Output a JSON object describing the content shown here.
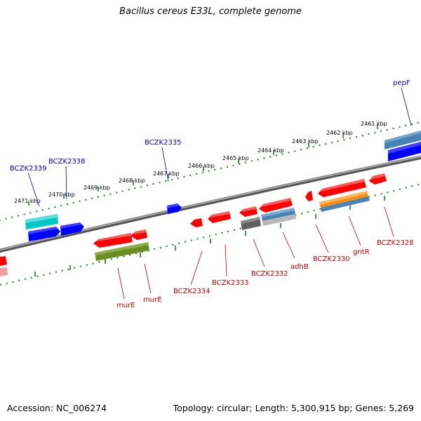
{
  "title": "Bacillus cereus E33L, complete genome",
  "accession": "Accession: NC_006274",
  "summary": "Topology: circular; Length: 5,300,915 bp; Genes: 5,269",
  "colors": {
    "backbone": "#7f7f7f",
    "tick": "#1e7d1e",
    "plus_label": "#0000c8",
    "minus_label": "#c80000",
    "cds": "#ff0000",
    "cds_plus": "#0000ff",
    "cyan": "#00c8c8",
    "olive": "#6b8e23",
    "steelblue": "#4682b4",
    "orange": "#ff8c00",
    "grey": "#606060"
  },
  "kbp_labels": [
    "2461 kbp",
    "2462 kbp",
    "2463 kbp",
    "2464 kbp",
    "2465 kbp",
    "2466 kbp",
    "2467 kbp",
    "2468 kbp",
    "2469 kbp",
    "2470 kbp",
    "2471 kbp"
  ],
  "plus_gene_labels": [
    "pepF",
    "BCZK2335",
    "BCZK2338",
    "BCZK2339"
  ],
  "minus_gene_labels": [
    "BCZK2328",
    "gntR",
    "BCZK2330",
    "adhB",
    "BCZK2332",
    "BCZK2333",
    "BCZK2334",
    "murE",
    "murE"
  ]
}
